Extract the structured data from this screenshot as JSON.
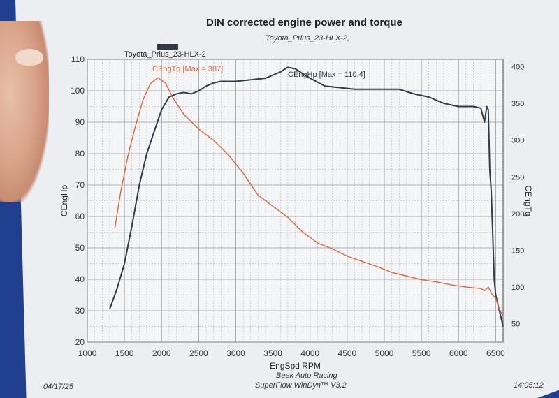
{
  "page": {
    "title": "DIN corrected engine power and torque",
    "subtitle": "Toyota_Prius_23-HLX-2,",
    "legend_run": "Toyota_Prius_23-HLX-2",
    "date": "04/17/25",
    "time": "14:05:12",
    "company": "Beek Auto Racing",
    "software": "SuperFlow WinDyn™ V3.2"
  },
  "colors": {
    "paper": "#eceef2",
    "background": "#1f3f8f",
    "power": "#2f3b46",
    "torque": "#d9663e",
    "grid": "#9a9a9a"
  },
  "chart_data": {
    "type": "line",
    "xlabel": "EngSpd RPM",
    "ylabel": "CEngHp",
    "y2label": "CEngTq",
    "xlim": [
      1000,
      6600
    ],
    "ylim": [
      20,
      110
    ],
    "y2lim": [
      25,
      410
    ],
    "xticks": [
      "1000",
      "1500",
      "2000",
      "2500",
      "3000",
      "3500",
      "4000",
      "4500",
      "5000",
      "5500",
      "6000",
      "6500"
    ],
    "yticks": [
      "110",
      "100",
      "90",
      "80",
      "70",
      "60",
      "50",
      "40",
      "30",
      "20"
    ],
    "y2ticks": [
      "400",
      "350",
      "300",
      "250",
      "200",
      "150",
      "100",
      "50"
    ],
    "series": [
      {
        "name": "CEngHp",
        "label": "CEngHp [Max = 110.4]",
        "axis": "left",
        "x": [
          1300,
          1400,
          1500,
          1600,
          1700,
          1800,
          1900,
          2000,
          2100,
          2200,
          2300,
          2400,
          2500,
          2600,
          2700,
          2800,
          3000,
          3200,
          3400,
          3600,
          3700,
          3800,
          3900,
          4000,
          4200,
          4400,
          4600,
          4800,
          5000,
          5200,
          5400,
          5600,
          5800,
          6000,
          6200,
          6300,
          6350,
          6380,
          6400,
          6420,
          6440,
          6460,
          6480,
          6500,
          6550,
          6600
        ],
        "y": [
          30.5,
          37,
          45,
          57,
          70,
          80,
          87,
          94,
          98,
          99,
          99.5,
          99,
          100,
          101.5,
          102.5,
          103,
          103,
          103.5,
          104,
          106,
          107.5,
          107,
          105.5,
          104,
          101.5,
          101,
          100.5,
          100.5,
          100.5,
          100.5,
          99,
          98,
          96,
          95,
          95,
          94.5,
          90,
          95,
          94,
          75,
          68,
          55,
          40,
          35,
          30,
          25
        ]
      },
      {
        "name": "CEngTq",
        "label": "CEngTq [Max = 387]",
        "axis": "right",
        "x": [
          1370,
          1450,
          1550,
          1650,
          1750,
          1850,
          1950,
          2050,
          2150,
          2300,
          2500,
          2700,
          2900,
          3100,
          3300,
          3500,
          3700,
          3900,
          4100,
          4300,
          4500,
          4700,
          4900,
          5100,
          5300,
          5500,
          5700,
          5900,
          6100,
          6300,
          6350,
          6400,
          6450,
          6500,
          6550,
          6600
        ],
        "y": [
          180,
          230,
          280,
          320,
          355,
          377,
          385,
          378,
          358,
          335,
          315,
          300,
          280,
          255,
          225,
          210,
          195,
          175,
          160,
          152,
          142,
          135,
          128,
          120,
          115,
          110,
          107,
          103,
          100,
          98,
          95,
          100,
          90,
          85,
          70,
          60
        ]
      }
    ]
  }
}
